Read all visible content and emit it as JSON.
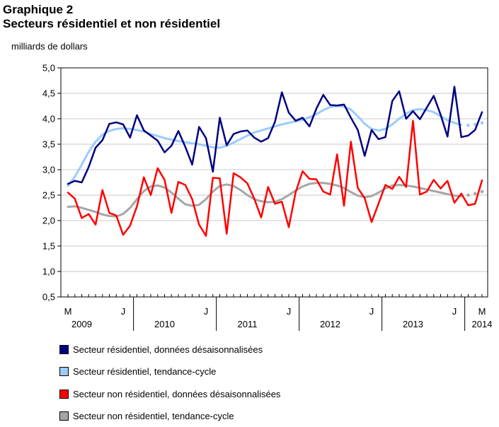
{
  "header": {
    "title_line1": "Graphique 2",
    "title_line2": "Secteurs résidentiel et non résidentiel"
  },
  "colors": {
    "res_data": "#000080",
    "res_trend": "#99ccff",
    "nonres_data": "#ff0000",
    "nonres_trend": "#a6a6a6"
  },
  "chart_data": {
    "type": "line",
    "title": "Secteurs résidentiel et non résidentiel",
    "ylabel": "milliards de dollars",
    "xlabel": "",
    "ylim": [
      0.5,
      5.0
    ],
    "yticks": [
      0.5,
      1.0,
      1.5,
      2.0,
      2.5,
      3.0,
      3.5,
      4.0,
      4.5,
      5.0
    ],
    "ytick_labels": [
      "0,5",
      "1,0",
      "1,5",
      "2,0",
      "2,5",
      "3,0",
      "3,5",
      "4,0",
      "4,5",
      "5,0"
    ],
    "x_month_ticks": [
      {
        "index": 0,
        "label": "M"
      },
      {
        "index": 8,
        "label": "J"
      },
      {
        "index": 20,
        "label": "J"
      },
      {
        "index": 32,
        "label": "J"
      },
      {
        "index": 44,
        "label": "J"
      },
      {
        "index": 56,
        "label": "J"
      },
      {
        "index": 60,
        "label": "M"
      }
    ],
    "x_year_labels": [
      {
        "center": 2,
        "label": "2009"
      },
      {
        "center": 14,
        "label": "2010"
      },
      {
        "center": 26,
        "label": "2011"
      },
      {
        "center": 38,
        "label": "2012"
      },
      {
        "center": 50,
        "label": "2013"
      },
      {
        "center": 60,
        "label": "2014"
      }
    ],
    "year_boundaries": [
      9.5,
      21.5,
      33.5,
      45.5,
      57.5
    ],
    "months": [
      "2009-03",
      "2009-04",
      "2009-05",
      "2009-06",
      "2009-07",
      "2009-08",
      "2009-09",
      "2009-10",
      "2009-11",
      "2009-12",
      "2010-01",
      "2010-02",
      "2010-03",
      "2010-04",
      "2010-05",
      "2010-06",
      "2010-07",
      "2010-08",
      "2010-09",
      "2010-10",
      "2010-11",
      "2010-12",
      "2011-01",
      "2011-02",
      "2011-03",
      "2011-04",
      "2011-05",
      "2011-06",
      "2011-07",
      "2011-08",
      "2011-09",
      "2011-10",
      "2011-11",
      "2011-12",
      "2012-01",
      "2012-02",
      "2012-03",
      "2012-04",
      "2012-05",
      "2012-06",
      "2012-07",
      "2012-08",
      "2012-09",
      "2012-10",
      "2012-11",
      "2012-12",
      "2013-01",
      "2013-02",
      "2013-03",
      "2013-04",
      "2013-05",
      "2013-06",
      "2013-07",
      "2013-08",
      "2013-09",
      "2013-10",
      "2013-11",
      "2013-12",
      "2014-01",
      "2014-02",
      "2014-03"
    ],
    "series": [
      {
        "name": "Secteur résidentiel, données désaisonnalisées",
        "style": "data",
        "values": [
          2.72,
          2.78,
          2.75,
          3.05,
          3.43,
          3.58,
          3.9,
          3.93,
          3.89,
          3.63,
          4.07,
          3.77,
          3.67,
          3.57,
          3.34,
          3.47,
          3.76,
          3.45,
          3.1,
          3.84,
          3.62,
          2.96,
          4.02,
          3.48,
          3.7,
          3.75,
          3.77,
          3.63,
          3.55,
          3.62,
          3.94,
          4.52,
          4.12,
          3.96,
          4.02,
          3.85,
          4.2,
          4.47,
          4.27,
          4.26,
          4.28,
          4.02,
          3.78,
          3.27,
          3.78,
          3.6,
          3.64,
          4.35,
          4.54,
          4.0,
          4.15,
          3.99,
          4.22,
          4.45,
          4.08,
          3.65,
          4.63,
          3.64,
          3.67,
          3.78,
          4.13
        ],
        "dashed_from": null
      },
      {
        "name": "Secteur résidentiel, tendance-cycle",
        "style": "trend",
        "values": [
          2.68,
          2.86,
          3.1,
          3.35,
          3.55,
          3.69,
          3.76,
          3.8,
          3.81,
          3.8,
          3.78,
          3.75,
          3.7,
          3.66,
          3.62,
          3.59,
          3.56,
          3.54,
          3.52,
          3.5,
          3.47,
          3.44,
          3.43,
          3.47,
          3.53,
          3.6,
          3.67,
          3.73,
          3.77,
          3.81,
          3.85,
          3.89,
          3.92,
          3.95,
          3.98,
          4.03,
          4.09,
          4.17,
          4.23,
          4.25,
          4.24,
          4.18,
          4.05,
          3.9,
          3.8,
          3.77,
          3.8,
          3.89,
          4.0,
          4.1,
          4.17,
          4.19,
          4.17,
          4.13,
          4.05,
          3.97,
          3.92,
          3.88,
          3.87,
          3.89,
          3.92
        ],
        "dashed_from": 57
      },
      {
        "name": "Secteur non résidentiel, données désaisonnalisées",
        "style": "data",
        "values": [
          2.55,
          2.43,
          2.05,
          2.13,
          1.92,
          2.6,
          2.15,
          2.1,
          1.72,
          1.9,
          2.28,
          2.85,
          2.5,
          3.03,
          2.8,
          2.15,
          2.76,
          2.7,
          2.42,
          1.92,
          1.7,
          2.84,
          2.83,
          1.74,
          2.93,
          2.85,
          2.73,
          2.43,
          2.06,
          2.66,
          2.33,
          2.37,
          1.87,
          2.56,
          2.97,
          2.82,
          2.81,
          2.57,
          2.51,
          3.3,
          2.29,
          3.55,
          2.64,
          2.44,
          1.97,
          2.33,
          2.7,
          2.62,
          2.86,
          2.66,
          3.96,
          2.51,
          2.57,
          2.8,
          2.63,
          2.78,
          2.35,
          2.53,
          2.3,
          2.33,
          2.79
        ],
        "dashed_from": null
      },
      {
        "name": "Secteur non résidentiel, tendance-cycle",
        "style": "trend",
        "values": [
          2.27,
          2.28,
          2.25,
          2.21,
          2.17,
          2.12,
          2.09,
          2.08,
          2.13,
          2.25,
          2.42,
          2.58,
          2.67,
          2.69,
          2.65,
          2.55,
          2.43,
          2.32,
          2.29,
          2.31,
          2.42,
          2.57,
          2.68,
          2.71,
          2.68,
          2.6,
          2.5,
          2.42,
          2.38,
          2.36,
          2.37,
          2.42,
          2.5,
          2.59,
          2.67,
          2.72,
          2.74,
          2.74,
          2.72,
          2.69,
          2.64,
          2.56,
          2.49,
          2.46,
          2.48,
          2.55,
          2.63,
          2.69,
          2.7,
          2.69,
          2.67,
          2.64,
          2.61,
          2.58,
          2.55,
          2.52,
          2.49,
          2.48,
          2.5,
          2.53,
          2.57
        ],
        "dashed_from": 57
      }
    ]
  },
  "legend": {
    "items": [
      "Secteur résidentiel, données désaisonnalisées",
      "Secteur résidentiel, tendance-cycle",
      "Secteur non résidentiel, données désaisonnalisées",
      "Secteur non résidentiel, tendance-cycle"
    ]
  }
}
